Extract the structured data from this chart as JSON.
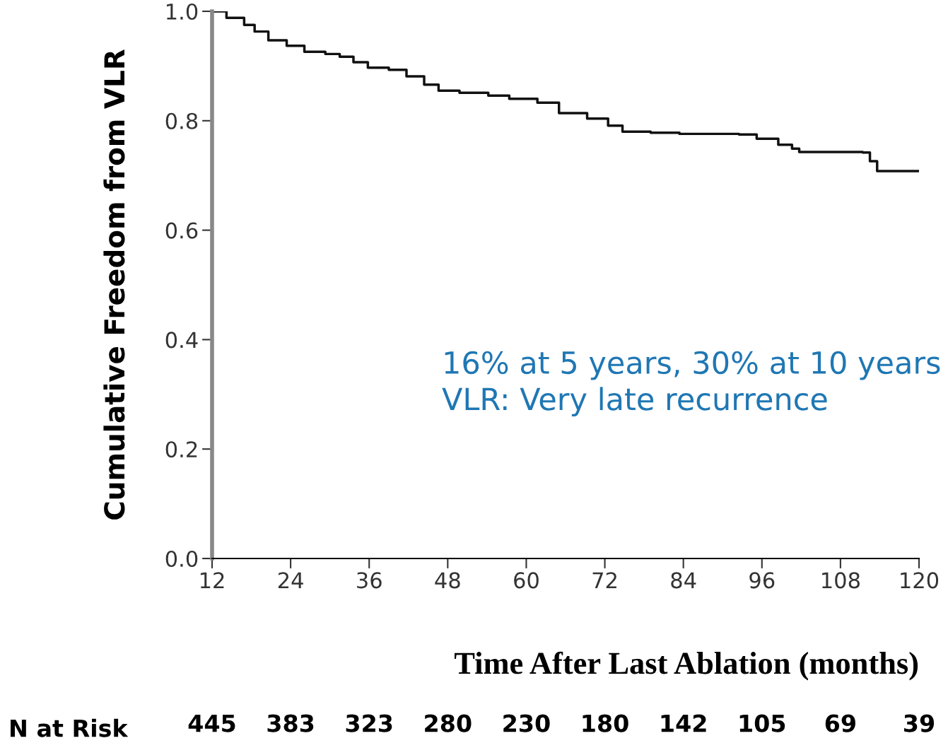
{
  "chart_data": {
    "type": "step",
    "xlabel": "Time After Last Ablation (months)",
    "ylabel": "Cumulative Freedom from VLR",
    "x": [
      12,
      14.2,
      16.9,
      18.5,
      20.6,
      23.4,
      26.1,
      29.3,
      31.5,
      33.6,
      35.8,
      39.0,
      41.7,
      44.4,
      46.6,
      49.8,
      54.2,
      57.4,
      61.7,
      65.0,
      69.3,
      72.5,
      74.7,
      79.0,
      83.4,
      87.7,
      92.5,
      95.2,
      98.5,
      100.6,
      101.7,
      111.4,
      112.5,
      113.6,
      120
    ],
    "series": [
      {
        "color": "#111111",
        "values": [
          1.0,
          0.988,
          0.975,
          0.963,
          0.947,
          0.937,
          0.926,
          0.922,
          0.917,
          0.907,
          0.897,
          0.893,
          0.881,
          0.866,
          0.855,
          0.851,
          0.846,
          0.84,
          0.833,
          0.814,
          0.804,
          0.791,
          0.78,
          0.778,
          0.776,
          0.776,
          0.775,
          0.767,
          0.756,
          0.749,
          0.743,
          0.742,
          0.726,
          0.708,
          0.708
        ]
      }
    ],
    "xlim": [
      12,
      120
    ],
    "xticks": [
      12,
      24,
      36,
      48,
      60,
      72,
      84,
      96,
      108,
      120
    ],
    "ylim": [
      0,
      1.0
    ],
    "yticks": [
      {
        "value": 0,
        "label": "0.0"
      },
      0.2,
      0.4,
      0.6,
      0.8,
      {
        "value": 1.0,
        "label": "1.0"
      }
    ],
    "grid": false,
    "legend": false,
    "annotations": [
      "16% at 5 years, 30% at 10 years\nVLR: Very late recurrence",
      "N at Risk",
      "445",
      "383",
      "323",
      "280",
      "230",
      "180",
      "142",
      "105",
      "69",
      "39"
    ]
  }
}
